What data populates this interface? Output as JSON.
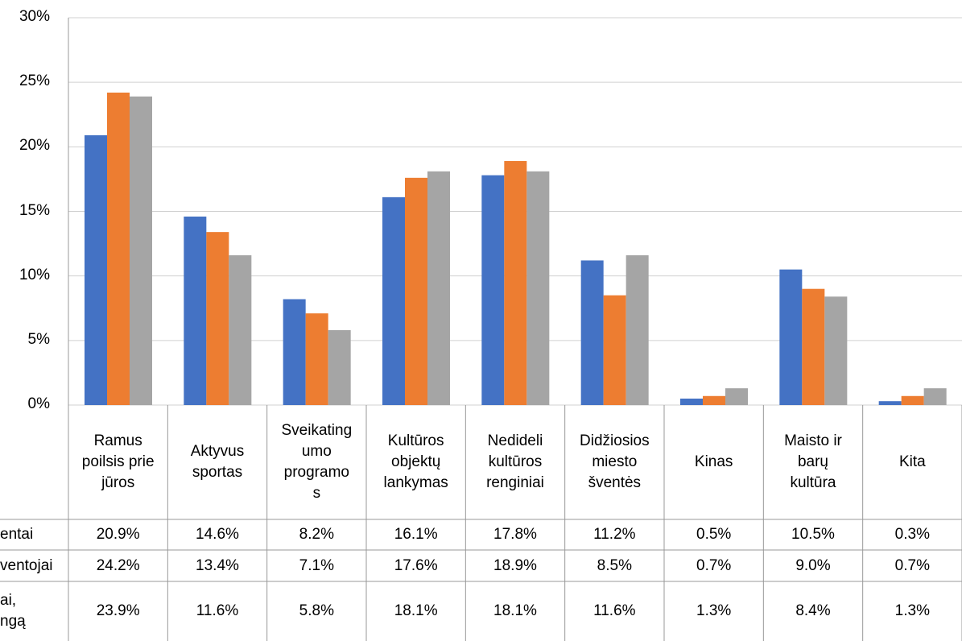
{
  "chart_data": {
    "type": "bar",
    "categories": [
      "Ramus\npoilsis prie\njūros",
      "Aktyvus\nsportas",
      "Sveikating\numo\nprogramo\ns",
      "Kultūros\nobjektų\nlankymas",
      "Nedideli\nkultūros\nrenginiai",
      "Didžiosios\nmiesto\nšventės",
      "Kinas",
      "Maisto ir\nbarų\nkultūra",
      "Kita"
    ],
    "series": [
      {
        "name": "entai",
        "color": "#4472c4",
        "values": [
          20.9,
          14.6,
          8.2,
          16.1,
          17.8,
          11.2,
          0.5,
          10.5,
          0.3
        ],
        "value_labels": [
          "20.9%",
          "14.6%",
          "8.2%",
          "16.1%",
          "17.8%",
          "11.2%",
          "0.5%",
          "10.5%",
          "0.3%"
        ]
      },
      {
        "name": "ventojai",
        "color": "#ed7d31",
        "values": [
          24.2,
          13.4,
          7.1,
          17.6,
          18.9,
          8.5,
          0.7,
          9.0,
          0.7
        ],
        "value_labels": [
          "24.2%",
          "13.4%",
          "7.1%",
          "17.6%",
          "18.9%",
          "8.5%",
          "0.7%",
          "9.0%",
          "0.7%"
        ]
      },
      {
        "name": "ai,\nngą",
        "color": "#a5a5a5",
        "values": [
          23.9,
          11.6,
          5.8,
          18.1,
          18.1,
          11.6,
          1.3,
          8.4,
          1.3
        ],
        "value_labels": [
          "23.9%",
          "11.6%",
          "5.8%",
          "18.1%",
          "18.1%",
          "11.6%",
          "1.3%",
          "8.4%",
          "1.3%"
        ]
      }
    ],
    "ylim": [
      0,
      30
    ],
    "yticks": [
      {
        "value": 0,
        "label": "0%"
      },
      {
        "value": 5,
        "label": "5%"
      },
      {
        "value": 10,
        "label": "10%"
      },
      {
        "value": 15,
        "label": "15%"
      },
      {
        "value": 20,
        "label": "20%"
      },
      {
        "value": 25,
        "label": "25%"
      },
      {
        "value": 30,
        "label": "30%"
      }
    ],
    "grid": true
  }
}
